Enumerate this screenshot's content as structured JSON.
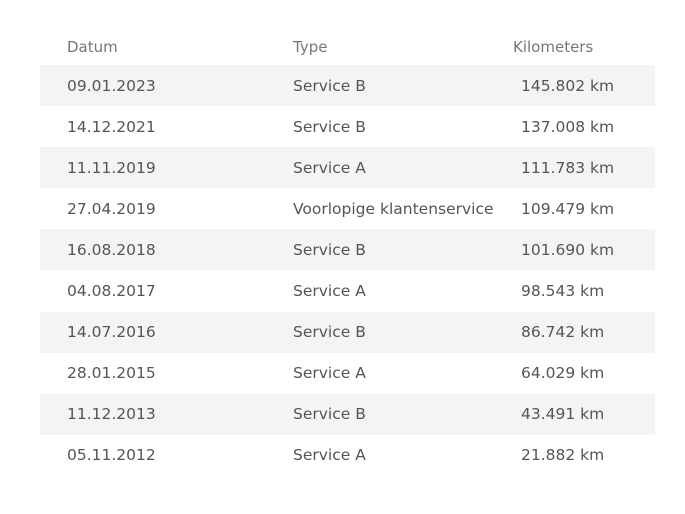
{
  "headers": [
    "Datum",
    "Type",
    "Kilometers"
  ],
  "rows": [
    [
      "09.01.2023",
      "Service B",
      "145.802 km"
    ],
    [
      "14.12.2021",
      "Service B",
      "137.008 km"
    ],
    [
      "11.11.2019",
      "Service A",
      "111.783 km"
    ],
    [
      "27.04.2019",
      "Voorlopige klantenservice",
      "109.479 km"
    ],
    [
      "16.08.2018",
      "Service B",
      "101.690 km"
    ],
    [
      "04.08.2017",
      "Service A",
      "98.543 km"
    ],
    [
      "14.07.2016",
      "Service B",
      "86.742 km"
    ],
    [
      "28.01.2015",
      "Service A",
      "64.029 km"
    ],
    [
      "11.12.2013",
      "Service B",
      "43.491 km"
    ],
    [
      "05.11.2012",
      "Service A",
      "21.882 km"
    ]
  ]
}
